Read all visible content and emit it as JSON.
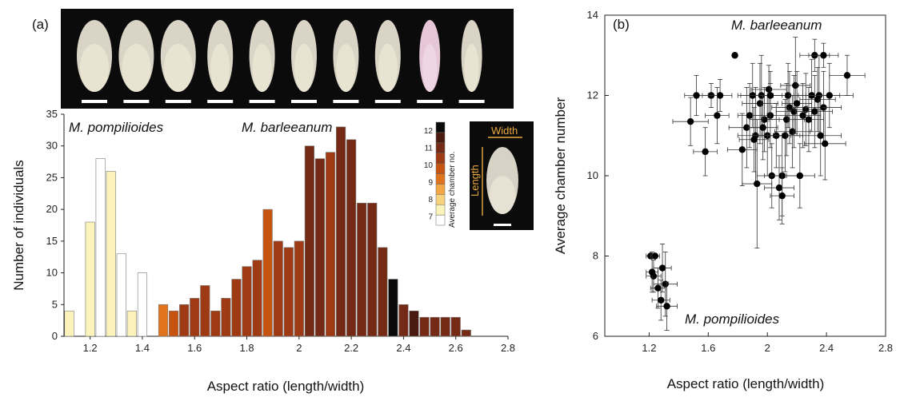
{
  "chart_data": [
    {
      "panel": "(a)",
      "type": "bar",
      "xlabel": "Aspect ratio (length/width)",
      "ylabel": "Number of individuals",
      "xlim": [
        1.1,
        2.8
      ],
      "ylim": [
        0,
        35
      ],
      "xticks": [
        "1.2",
        "1.4",
        "1.6",
        "1.8",
        "2",
        "2.2",
        "2.4",
        "2.6",
        "2.8"
      ],
      "yticks": [
        "0",
        "5",
        "10",
        "15",
        "20",
        "25",
        "30",
        "35"
      ],
      "annotations": [
        "M. pompilioides",
        "M. barleeanum"
      ],
      "legend": {
        "title": "Average chamber no.",
        "levels": [
          "7",
          "8",
          "9",
          "10",
          "11",
          "12"
        ],
        "colors": [
          "#ffffff",
          "#fbf3b9",
          "#f8d27c",
          "#f2a744",
          "#e0741e",
          "#c65410",
          "#9e3a14",
          "#742a14",
          "#4a1a10",
          "#0a0a0a"
        ]
      },
      "inset_labels": {
        "width": "Width",
        "length": "Length"
      },
      "specimen_count": 10,
      "bars": [
        {
          "x": 1.12,
          "value": 4,
          "chamber": 7.6
        },
        {
          "x": 1.2,
          "value": 18,
          "chamber": 7.7
        },
        {
          "x": 1.24,
          "value": 28,
          "chamber": 7.0
        },
        {
          "x": 1.28,
          "value": 26,
          "chamber": 7.5
        },
        {
          "x": 1.32,
          "value": 13,
          "chamber": 7.0
        },
        {
          "x": 1.36,
          "value": 4,
          "chamber": 7.7
        },
        {
          "x": 1.4,
          "value": 10,
          "chamber": 7.0
        },
        {
          "x": 1.48,
          "value": 5,
          "chamber": 9.5
        },
        {
          "x": 1.52,
          "value": 4,
          "chamber": 10.5
        },
        {
          "x": 1.56,
          "value": 5,
          "chamber": 11.0
        },
        {
          "x": 1.6,
          "value": 6,
          "chamber": 11.0
        },
        {
          "x": 1.64,
          "value": 8,
          "chamber": 11.2
        },
        {
          "x": 1.68,
          "value": 4,
          "chamber": 10.8
        },
        {
          "x": 1.72,
          "value": 6,
          "chamber": 11.2
        },
        {
          "x": 1.76,
          "value": 9,
          "chamber": 11.0
        },
        {
          "x": 1.8,
          "value": 11,
          "chamber": 11.0
        },
        {
          "x": 1.84,
          "value": 12,
          "chamber": 10.8
        },
        {
          "x": 1.88,
          "value": 20,
          "chamber": 10.5
        },
        {
          "x": 1.92,
          "value": 15,
          "chamber": 11.0
        },
        {
          "x": 1.96,
          "value": 14,
          "chamber": 11.0
        },
        {
          "x": 2.0,
          "value": 15,
          "chamber": 11.2
        },
        {
          "x": 2.04,
          "value": 30,
          "chamber": 11.4
        },
        {
          "x": 2.08,
          "value": 28,
          "chamber": 11.4
        },
        {
          "x": 2.12,
          "value": 29,
          "chamber": 11.3
        },
        {
          "x": 2.16,
          "value": 33,
          "chamber": 11.4
        },
        {
          "x": 2.2,
          "value": 31,
          "chamber": 11.4
        },
        {
          "x": 2.24,
          "value": 21,
          "chamber": 11.4
        },
        {
          "x": 2.28,
          "value": 21,
          "chamber": 11.6
        },
        {
          "x": 2.32,
          "value": 14,
          "chamber": 11.7
        },
        {
          "x": 2.36,
          "value": 9,
          "chamber": 12.8
        },
        {
          "x": 2.4,
          "value": 5,
          "chamber": 11.6
        },
        {
          "x": 2.44,
          "value": 4,
          "chamber": 12.3
        },
        {
          "x": 2.48,
          "value": 3,
          "chamber": 11.6
        },
        {
          "x": 2.52,
          "value": 3,
          "chamber": 11.6
        },
        {
          "x": 2.56,
          "value": 3,
          "chamber": 11.6
        },
        {
          "x": 2.6,
          "value": 3,
          "chamber": 11.7
        },
        {
          "x": 2.64,
          "value": 1,
          "chamber": 11.6
        }
      ]
    },
    {
      "panel": "(b)",
      "type": "scatter",
      "xlabel": "Aspect ratio (length/width)",
      "ylabel": "Average chamber number",
      "xlim": [
        0.9,
        2.8
      ],
      "ylim": [
        6,
        14
      ],
      "xticks": [
        "1.2",
        "1.6",
        "2",
        "2.4",
        "2.8"
      ],
      "yticks": [
        "6",
        "8",
        "10",
        "12",
        "14"
      ],
      "annotations": [
        "M. barleeanum",
        "M. pompilioides"
      ],
      "points": [
        {
          "x": 1.21,
          "y": 8.0,
          "ex": 0.03,
          "ey": 0.0
        },
        {
          "x": 1.24,
          "y": 8.0,
          "ex": 0.03,
          "ey": 0.0
        },
        {
          "x": 1.29,
          "y": 7.7,
          "ex": 0.06,
          "ey": 0.6
        },
        {
          "x": 1.23,
          "y": 7.5,
          "ex": 0.05,
          "ey": 0.4
        },
        {
          "x": 1.31,
          "y": 7.3,
          "ex": 0.08,
          "ey": 0.8
        },
        {
          "x": 1.26,
          "y": 7.2,
          "ex": 0.05,
          "ey": 0.5
        },
        {
          "x": 1.28,
          "y": 6.9,
          "ex": 0.06,
          "ey": 0.5
        },
        {
          "x": 1.32,
          "y": 6.75,
          "ex": 0.07,
          "ey": 0.6
        },
        {
          "x": 1.22,
          "y": 7.6,
          "ex": 0.04,
          "ey": 0.5
        },
        {
          "x": 1.48,
          "y": 11.35,
          "ex": 0.12,
          "ey": 0.6
        },
        {
          "x": 1.52,
          "y": 12.0,
          "ex": 0.08,
          "ey": 0.5
        },
        {
          "x": 1.58,
          "y": 10.6,
          "ex": 0.08,
          "ey": 0.6
        },
        {
          "x": 1.62,
          "y": 12.0,
          "ex": 0.06,
          "ey": 0.3
        },
        {
          "x": 1.68,
          "y": 12.0,
          "ex": 0.08,
          "ey": 0.4
        },
        {
          "x": 1.66,
          "y": 11.5,
          "ex": 0.08,
          "ey": 0.7
        },
        {
          "x": 1.78,
          "y": 13.0,
          "ex": 0.0,
          "ey": 0.0
        },
        {
          "x": 1.83,
          "y": 10.65,
          "ex": 0.1,
          "ey": 0.9
        },
        {
          "x": 1.86,
          "y": 11.2,
          "ex": 0.12,
          "ey": 1.0
        },
        {
          "x": 1.88,
          "y": 11.5,
          "ex": 0.08,
          "ey": 0.8
        },
        {
          "x": 1.9,
          "y": 12.0,
          "ex": 0.1,
          "ey": 0.8
        },
        {
          "x": 1.92,
          "y": 11.0,
          "ex": 0.12,
          "ey": 1.2
        },
        {
          "x": 1.93,
          "y": 9.8,
          "ex": 0.1,
          "ey": 1.6
        },
        {
          "x": 1.95,
          "y": 11.8,
          "ex": 0.12,
          "ey": 1.0
        },
        {
          "x": 1.96,
          "y": 12.0,
          "ex": 0.14,
          "ey": 1.0
        },
        {
          "x": 1.98,
          "y": 11.4,
          "ex": 0.1,
          "ey": 0.8
        },
        {
          "x": 1.97,
          "y": 11.2,
          "ex": 0.1,
          "ey": 0.8
        },
        {
          "x": 2.0,
          "y": 11.0,
          "ex": 0.1,
          "ey": 1.0
        },
        {
          "x": 2.01,
          "y": 12.15,
          "ex": 0.12,
          "ey": 0.6
        },
        {
          "x": 2.02,
          "y": 11.5,
          "ex": 0.12,
          "ey": 0.8
        },
        {
          "x": 2.03,
          "y": 10.0,
          "ex": 0.1,
          "ey": 0.8
        },
        {
          "x": 2.06,
          "y": 11.0,
          "ex": 0.1,
          "ey": 0.8
        },
        {
          "x": 2.08,
          "y": 9.7,
          "ex": 0.1,
          "ey": 0.8
        },
        {
          "x": 2.1,
          "y": 10.0,
          "ex": 0.12,
          "ey": 1.0
        },
        {
          "x": 2.1,
          "y": 9.5,
          "ex": 0.08,
          "ey": 0.7
        },
        {
          "x": 2.12,
          "y": 11.0,
          "ex": 0.12,
          "ey": 0.9
        },
        {
          "x": 2.13,
          "y": 11.4,
          "ex": 0.12,
          "ey": 0.9
        },
        {
          "x": 2.14,
          "y": 12.0,
          "ex": 0.1,
          "ey": 0.8
        },
        {
          "x": 2.15,
          "y": 11.7,
          "ex": 0.12,
          "ey": 0.9
        },
        {
          "x": 2.17,
          "y": 11.1,
          "ex": 0.12,
          "ey": 0.9
        },
        {
          "x": 2.18,
          "y": 11.6,
          "ex": 0.12,
          "ey": 0.9
        },
        {
          "x": 2.19,
          "y": 12.25,
          "ex": 0.1,
          "ey": 1.2
        },
        {
          "x": 2.2,
          "y": 11.8,
          "ex": 0.1,
          "ey": 0.8
        },
        {
          "x": 2.22,
          "y": 10.0,
          "ex": 0.1,
          "ey": 0.8
        },
        {
          "x": 2.24,
          "y": 11.5,
          "ex": 0.12,
          "ey": 0.8
        },
        {
          "x": 2.26,
          "y": 11.65,
          "ex": 0.12,
          "ey": 0.9
        },
        {
          "x": 2.28,
          "y": 11.4,
          "ex": 0.1,
          "ey": 0.8
        },
        {
          "x": 2.3,
          "y": 12.0,
          "ex": 0.12,
          "ey": 0.9
        },
        {
          "x": 2.32,
          "y": 11.6,
          "ex": 0.12,
          "ey": 0.9
        },
        {
          "x": 2.34,
          "y": 11.9,
          "ex": 0.12,
          "ey": 0.8
        },
        {
          "x": 2.35,
          "y": 12.0,
          "ex": 0.14,
          "ey": 1.0
        },
        {
          "x": 2.36,
          "y": 11.0,
          "ex": 0.14,
          "ey": 1.0
        },
        {
          "x": 2.38,
          "y": 11.7,
          "ex": 0.12,
          "ey": 0.9
        },
        {
          "x": 2.39,
          "y": 10.8,
          "ex": 0.14,
          "ey": 0.9
        },
        {
          "x": 2.42,
          "y": 12.0,
          "ex": 0.16,
          "ey": 0.8
        },
        {
          "x": 2.32,
          "y": 13.0,
          "ex": 0.1,
          "ey": 0.4
        },
        {
          "x": 2.38,
          "y": 13.0,
          "ex": 0.1,
          "ey": 0.3
        },
        {
          "x": 2.54,
          "y": 12.5,
          "ex": 0.12,
          "ey": 0.5
        },
        {
          "x": 2.02,
          "y": 12.0,
          "ex": 0.1,
          "ey": 0.6
        },
        {
          "x": 1.91,
          "y": 10.9,
          "ex": 0.1,
          "ey": 0.8
        }
      ]
    }
  ]
}
